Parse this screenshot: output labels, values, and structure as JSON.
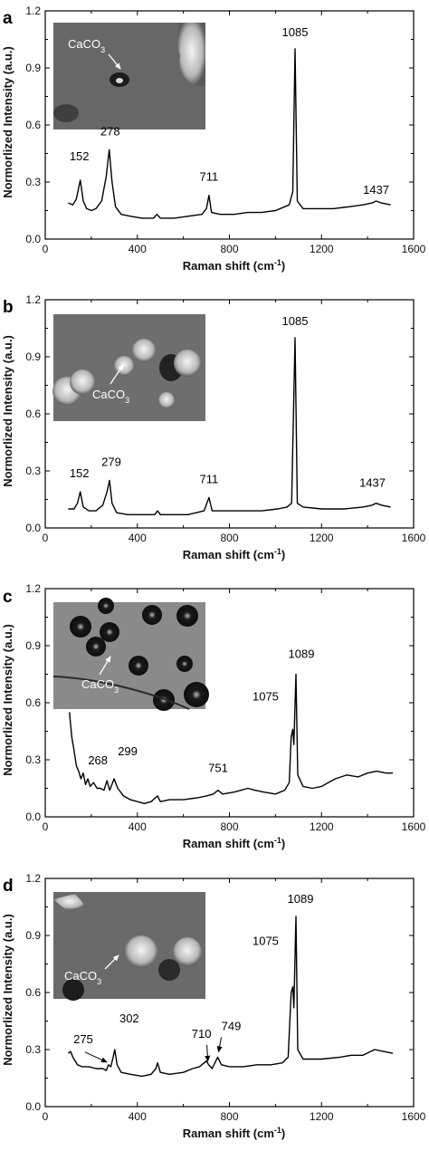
{
  "chart_data": [
    {
      "panel": "a",
      "type": "line",
      "xlabel": "Raman shift (cm",
      "xlabel_sup": "-1",
      "xlabel_end": ")",
      "ylabel": "Normorlized Intensity (a.u.)",
      "xlim": [
        0,
        1600
      ],
      "ylim": [
        0,
        1.2
      ],
      "xticks": [
        "0",
        "400",
        "800",
        "1200",
        "1600"
      ],
      "yticks": [
        "0.0",
        "0.3",
        "0.6",
        "0.9",
        "1.2"
      ],
      "inset_label": "CaCO",
      "inset_label_sub": "3",
      "series": [
        {
          "points": [
            [
              100,
              0.19
            ],
            [
              120,
              0.18
            ],
            [
              135,
              0.21
            ],
            [
              152,
              0.31
            ],
            [
              165,
              0.2
            ],
            [
              180,
              0.16
            ],
            [
              200,
              0.15
            ],
            [
              220,
              0.16
            ],
            [
              245,
              0.2
            ],
            [
              265,
              0.33
            ],
            [
              278,
              0.47
            ],
            [
              290,
              0.3
            ],
            [
              305,
              0.17
            ],
            [
              330,
              0.13
            ],
            [
              370,
              0.12
            ],
            [
              420,
              0.11
            ],
            [
              470,
              0.11
            ],
            [
              485,
              0.13
            ],
            [
              500,
              0.11
            ],
            [
              560,
              0.11
            ],
            [
              620,
              0.12
            ],
            [
              680,
              0.13
            ],
            [
              700,
              0.16
            ],
            [
              711,
              0.23
            ],
            [
              722,
              0.14
            ],
            [
              760,
              0.13
            ],
            [
              820,
              0.13
            ],
            [
              880,
              0.14
            ],
            [
              940,
              0.14
            ],
            [
              1000,
              0.15
            ],
            [
              1040,
              0.17
            ],
            [
              1060,
              0.18
            ],
            [
              1075,
              0.25
            ],
            [
              1085,
              1.0
            ],
            [
              1095,
              0.2
            ],
            [
              1120,
              0.16
            ],
            [
              1180,
              0.16
            ],
            [
              1250,
              0.16
            ],
            [
              1320,
              0.17
            ],
            [
              1380,
              0.18
            ],
            [
              1420,
              0.19
            ],
            [
              1437,
              0.2
            ],
            [
              1460,
              0.19
            ],
            [
              1500,
              0.18
            ]
          ]
        }
      ],
      "peaks": [
        {
          "label": "152",
          "x": 152,
          "y": 0.31
        },
        {
          "label": "278",
          "x": 278,
          "y": 0.47
        },
        {
          "label": "711",
          "x": 711,
          "y": 0.23
        },
        {
          "label": "1085",
          "x": 1085,
          "y": 1.0
        },
        {
          "label": "1437",
          "x": 1437,
          "y": 0.2
        }
      ]
    },
    {
      "panel": "b",
      "type": "line",
      "xlabel": "Raman shift (cm",
      "xlabel_sup": "-1",
      "xlabel_end": ")",
      "ylabel": "Normorlized Intensity (a.u.)",
      "xlim": [
        0,
        1600
      ],
      "ylim": [
        0,
        1.2
      ],
      "xticks": [
        "0",
        "400",
        "800",
        "1200",
        "1600"
      ],
      "yticks": [
        "0.0",
        "0.3",
        "0.6",
        "0.9",
        "1.2"
      ],
      "inset_label": "CaCO",
      "inset_label_sub": "3",
      "series": [
        {
          "points": [
            [
              100,
              0.1
            ],
            [
              125,
              0.1
            ],
            [
              140,
              0.13
            ],
            [
              152,
              0.19
            ],
            [
              165,
              0.11
            ],
            [
              190,
              0.09
            ],
            [
              220,
              0.09
            ],
            [
              250,
              0.12
            ],
            [
              268,
              0.19
            ],
            [
              279,
              0.25
            ],
            [
              290,
              0.13
            ],
            [
              310,
              0.08
            ],
            [
              360,
              0.07
            ],
            [
              420,
              0.07
            ],
            [
              475,
              0.07
            ],
            [
              488,
              0.09
            ],
            [
              500,
              0.07
            ],
            [
              560,
              0.07
            ],
            [
              620,
              0.07
            ],
            [
              690,
              0.09
            ],
            [
              711,
              0.16
            ],
            [
              725,
              0.09
            ],
            [
              780,
              0.09
            ],
            [
              860,
              0.09
            ],
            [
              940,
              0.09
            ],
            [
              1010,
              0.1
            ],
            [
              1050,
              0.11
            ],
            [
              1070,
              0.13
            ],
            [
              1085,
              1.0
            ],
            [
              1095,
              0.13
            ],
            [
              1120,
              0.11
            ],
            [
              1200,
              0.1
            ],
            [
              1300,
              0.1
            ],
            [
              1380,
              0.11
            ],
            [
              1420,
              0.12
            ],
            [
              1437,
              0.13
            ],
            [
              1460,
              0.12
            ],
            [
              1500,
              0.11
            ]
          ]
        }
      ],
      "peaks": [
        {
          "label": "152",
          "x": 152,
          "y": 0.19
        },
        {
          "label": "279",
          "x": 279,
          "y": 0.25
        },
        {
          "label": "711",
          "x": 711,
          "y": 0.16
        },
        {
          "label": "1085",
          "x": 1085,
          "y": 1.0
        },
        {
          "label": "1437",
          "x": 1437,
          "y": 0.13
        }
      ]
    },
    {
      "panel": "c",
      "type": "line",
      "xlabel": "Raman shift (cm",
      "xlabel_sup": "-1",
      "xlabel_end": ")",
      "ylabel": "Normorlized Intensity (a.u.)",
      "xlim": [
        0,
        1600
      ],
      "ylim": [
        0,
        1.2
      ],
      "xticks": [
        "0",
        "400",
        "800",
        "1200",
        "1600"
      ],
      "yticks": [
        "0.0",
        "0.3",
        "0.6",
        "0.9",
        "1.2"
      ],
      "inset_label": "CaCO",
      "inset_label_sub": "3",
      "series": [
        {
          "points": [
            [
              105,
              0.55
            ],
            [
              115,
              0.42
            ],
            [
              125,
              0.35
            ],
            [
              135,
              0.27
            ],
            [
              145,
              0.24
            ],
            [
              155,
              0.2
            ],
            [
              165,
              0.23
            ],
            [
              175,
              0.17
            ],
            [
              185,
              0.2
            ],
            [
              195,
              0.16
            ],
            [
              210,
              0.18
            ],
            [
              225,
              0.15
            ],
            [
              240,
              0.15
            ],
            [
              255,
              0.14
            ],
            [
              268,
              0.19
            ],
            [
              280,
              0.14
            ],
            [
              299,
              0.2
            ],
            [
              315,
              0.15
            ],
            [
              340,
              0.11
            ],
            [
              370,
              0.09
            ],
            [
              400,
              0.08
            ],
            [
              430,
              0.07
            ],
            [
              460,
              0.08
            ],
            [
              488,
              0.11
            ],
            [
              500,
              0.08
            ],
            [
              540,
              0.09
            ],
            [
              600,
              0.09
            ],
            [
              660,
              0.1
            ],
            [
              700,
              0.11
            ],
            [
              730,
              0.12
            ],
            [
              751,
              0.14
            ],
            [
              770,
              0.12
            ],
            [
              820,
              0.13
            ],
            [
              880,
              0.15
            ],
            [
              910,
              0.14
            ],
            [
              950,
              0.13
            ],
            [
              1000,
              0.12
            ],
            [
              1040,
              0.14
            ],
            [
              1060,
              0.18
            ],
            [
              1068,
              0.42
            ],
            [
              1075,
              0.46
            ],
            [
              1080,
              0.38
            ],
            [
              1089,
              0.75
            ],
            [
              1097,
              0.22
            ],
            [
              1120,
              0.16
            ],
            [
              1160,
              0.15
            ],
            [
              1200,
              0.16
            ],
            [
              1260,
              0.2
            ],
            [
              1310,
              0.22
            ],
            [
              1360,
              0.21
            ],
            [
              1400,
              0.23
            ],
            [
              1440,
              0.24
            ],
            [
              1480,
              0.23
            ],
            [
              1510,
              0.23
            ]
          ]
        }
      ],
      "peaks": [
        {
          "label": "268",
          "x": 268,
          "y": 0.19
        },
        {
          "label": "299",
          "x": 299,
          "y": 0.2
        },
        {
          "label": "751",
          "x": 751,
          "y": 0.14
        },
        {
          "label": "1075",
          "x": 1075,
          "y": 0.46
        },
        {
          "label": "1089",
          "x": 1089,
          "y": 0.75
        }
      ]
    },
    {
      "panel": "d",
      "type": "line",
      "xlabel": "Raman shift (cm",
      "xlabel_sup": "-1",
      "xlabel_end": ")",
      "ylabel": "Normorlized Intensity (a.u.)",
      "xlim": [
        0,
        1600
      ],
      "ylim": [
        0,
        1.2
      ],
      "xticks": [
        "0",
        "400",
        "800",
        "1200",
        "1600"
      ],
      "yticks": [
        "0.0",
        "0.3",
        "0.6",
        "0.9",
        "1.2"
      ],
      "inset_label": "CaCO",
      "inset_label_sub": "3",
      "series": [
        {
          "points": [
            [
              100,
              0.28
            ],
            [
              110,
              0.29
            ],
            [
              120,
              0.26
            ],
            [
              140,
              0.22
            ],
            [
              160,
              0.21
            ],
            [
              190,
              0.21
            ],
            [
              220,
              0.2
            ],
            [
              250,
              0.2
            ],
            [
              265,
              0.19
            ],
            [
              275,
              0.22
            ],
            [
              285,
              0.21
            ],
            [
              295,
              0.26
            ],
            [
              302,
              0.3
            ],
            [
              312,
              0.22
            ],
            [
              330,
              0.18
            ],
            [
              370,
              0.17
            ],
            [
              420,
              0.16
            ],
            [
              460,
              0.17
            ],
            [
              480,
              0.2
            ],
            [
              488,
              0.23
            ],
            [
              500,
              0.18
            ],
            [
              540,
              0.17
            ],
            [
              600,
              0.18
            ],
            [
              640,
              0.2
            ],
            [
              670,
              0.21
            ],
            [
              700,
              0.24
            ],
            [
              710,
              0.22
            ],
            [
              725,
              0.2
            ],
            [
              749,
              0.26
            ],
            [
              765,
              0.22
            ],
            [
              800,
              0.21
            ],
            [
              860,
              0.21
            ],
            [
              920,
              0.22
            ],
            [
              980,
              0.22
            ],
            [
              1030,
              0.23
            ],
            [
              1055,
              0.26
            ],
            [
              1068,
              0.6
            ],
            [
              1075,
              0.63
            ],
            [
              1080,
              0.52
            ],
            [
              1089,
              1.0
            ],
            [
              1097,
              0.3
            ],
            [
              1120,
              0.25
            ],
            [
              1200,
              0.25
            ],
            [
              1280,
              0.26
            ],
            [
              1330,
              0.27
            ],
            [
              1380,
              0.27
            ],
            [
              1430,
              0.3
            ],
            [
              1470,
              0.29
            ],
            [
              1510,
              0.28
            ]
          ]
        }
      ],
      "peaks": [
        {
          "label": "275",
          "x": 275,
          "y": 0.22
        },
        {
          "label": "302",
          "x": 302,
          "y": 0.3
        },
        {
          "label": "710",
          "x": 710,
          "y": 0.22
        },
        {
          "label": "749",
          "x": 749,
          "y": 0.26
        },
        {
          "label": "1075",
          "x": 1075,
          "y": 0.63
        },
        {
          "label": "1089",
          "x": 1089,
          "y": 1.0
        }
      ]
    }
  ]
}
